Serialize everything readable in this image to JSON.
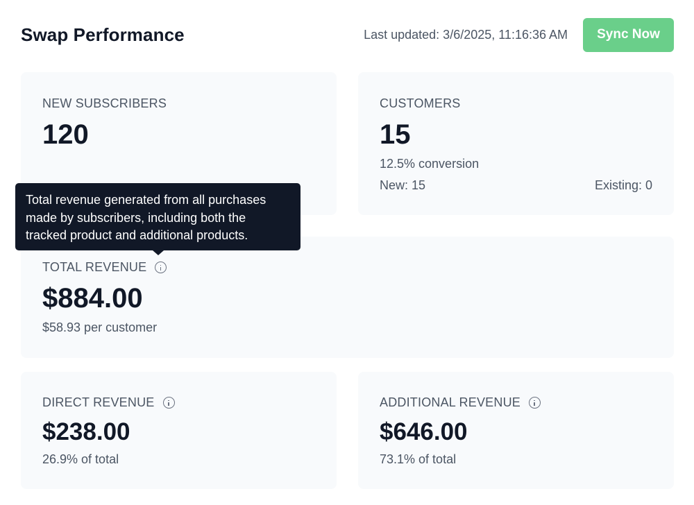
{
  "header": {
    "title": "Swap Performance",
    "last_updated": "Last updated: 3/6/2025, 11:16:36 AM",
    "sync_label": "Sync Now"
  },
  "cards": {
    "new_subscribers": {
      "label": "NEW SUBSCRIBERS",
      "value": "120"
    },
    "customers": {
      "label": "CUSTOMERS",
      "value": "15",
      "conversion": "12.5% conversion",
      "new": "New: 15",
      "existing": "Existing: 0"
    },
    "total_revenue": {
      "label": "TOTAL REVENUE",
      "value": "$884.00",
      "per_customer": "$58.93 per customer"
    },
    "direct_revenue": {
      "label": "DIRECT REVENUE",
      "value": "$238.00",
      "share": "26.9% of total"
    },
    "additional_revenue": {
      "label": "ADDITIONAL REVENUE",
      "value": "$646.00",
      "share": "73.1% of total"
    }
  },
  "tooltip": {
    "text": "Total revenue generated from all purchases made by subscribers, including both the tracked product and additional products."
  },
  "colors": {
    "accent": "#6acf8a",
    "card_bg": "#f8fafc",
    "tooltip_bg": "#111827",
    "text_primary": "#111827",
    "text_secondary": "#4b5563"
  },
  "icons": {
    "info": "info-circle-icon"
  }
}
